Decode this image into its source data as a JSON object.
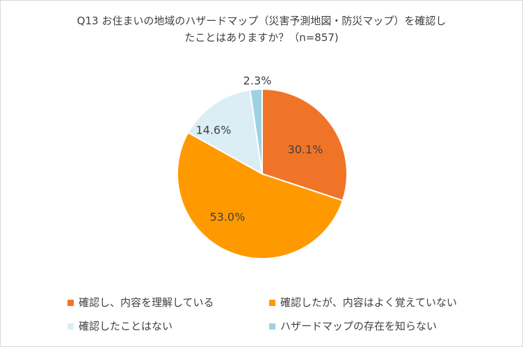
{
  "chart_data": {
    "type": "pie",
    "title_lines": [
      "Q13 お住まいの地域のハザードマップ（災害予測地図・防災マップ）を確認し",
      "たことはありますか？（n=857)"
    ],
    "categories": [
      "確認し、内容を理解している",
      "確認したが、内容はよく覚えていない",
      "確認したことはない",
      "ハザードマップの存在を知らない"
    ],
    "values": [
      30.1,
      53.0,
      14.6,
      2.3
    ],
    "labels": [
      "30.1%",
      "53.0%",
      "14.6%",
      "2.3%"
    ],
    "colors": [
      "#f07427",
      "#ff9900",
      "#dceef5",
      "#9fd2e0"
    ],
    "start_angle": "12 o'clock",
    "direction": "clockwise",
    "legend_placement": "bottom"
  }
}
